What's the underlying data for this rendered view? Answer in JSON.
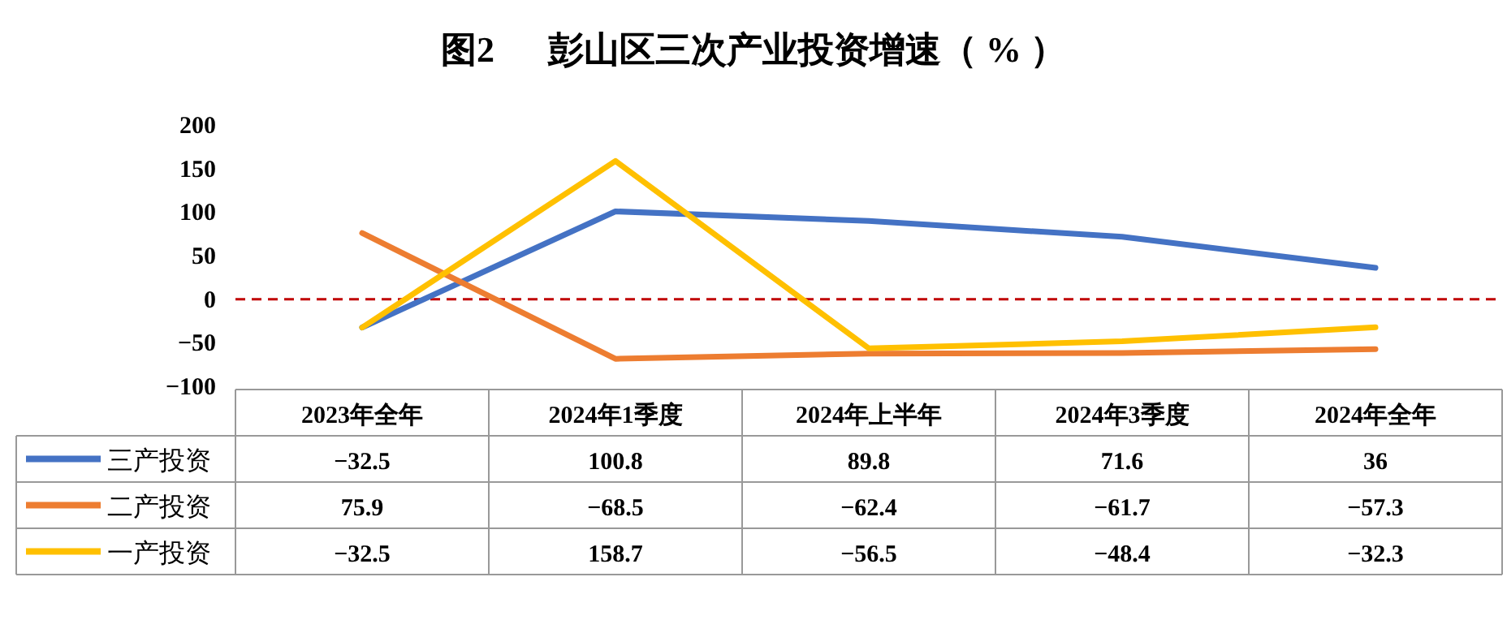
{
  "chart_data": {
    "type": "line",
    "title": "图2      彭山区三次产业投资增速（ % ）",
    "categories": [
      "2023年全年",
      "2024年1季度",
      "2024年上半年",
      "2024年3季度",
      "2024年全年"
    ],
    "series": [
      {
        "name": "三产投资",
        "color": "#4472c4",
        "values": [
          -32.5,
          100.8,
          89.8,
          71.6,
          36
        ]
      },
      {
        "name": "二产投资",
        "color": "#ed7d31",
        "values": [
          75.9,
          -68.5,
          -62.4,
          -61.7,
          -57.3
        ]
      },
      {
        "name": "一产投资",
        "color": "#ffc000",
        "values": [
          -32.5,
          158.7,
          -56.5,
          -48.4,
          -32.3
        ]
      }
    ],
    "ylim": [
      -100,
      200
    ],
    "yticks": [
      -100,
      -50,
      0,
      50,
      100,
      150,
      200
    ],
    "ref_lines": [
      {
        "axis": "y",
        "value": 0,
        "color": "#c00000",
        "line_style": "dashed"
      }
    ],
    "data_labels": true,
    "legend": "bottom",
    "grid": false,
    "marker": "none",
    "line_style": "solid"
  }
}
